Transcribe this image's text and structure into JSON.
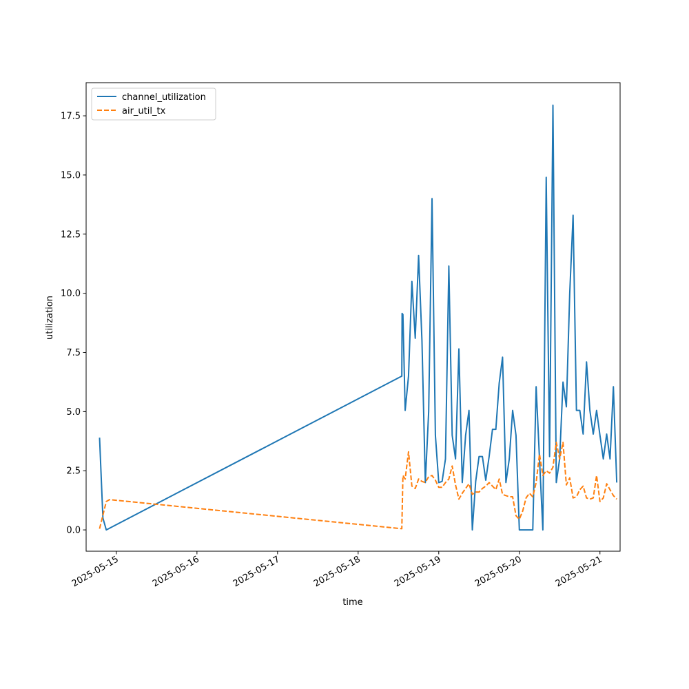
{
  "chart_data": {
    "type": "line",
    "title": "",
    "xlabel": "time",
    "ylabel": "utilization",
    "x_axis": "date",
    "xlim": [
      "2025-05-14T15:00",
      "2025-05-21T06:00"
    ],
    "ylim": [
      -0.9,
      18.9
    ],
    "grid": false,
    "legend_position": "top-left",
    "xticks": [
      {
        "value": "2025-05-15",
        "label": "2025-05-15"
      },
      {
        "value": "2025-05-16",
        "label": "2025-05-16"
      },
      {
        "value": "2025-05-17",
        "label": "2025-05-17"
      },
      {
        "value": "2025-05-18",
        "label": "2025-05-18"
      },
      {
        "value": "2025-05-19",
        "label": "2025-05-19"
      },
      {
        "value": "2025-05-20",
        "label": "2025-05-20"
      },
      {
        "value": "2025-05-21",
        "label": "2025-05-21"
      }
    ],
    "yticks": [
      {
        "value": 0,
        "label": "0.0"
      },
      {
        "value": 2.5,
        "label": "2.5"
      },
      {
        "value": 5,
        "label": "5.0"
      },
      {
        "value": 7.5,
        "label": "7.5"
      },
      {
        "value": 10,
        "label": "10.0"
      },
      {
        "value": 12.5,
        "label": "12.5"
      },
      {
        "value": 15,
        "label": "15.0"
      },
      {
        "value": 17.5,
        "label": "17.5"
      }
    ],
    "series": [
      {
        "name": "channel_utilization",
        "color": "#1f77b4",
        "style": "solid",
        "points": [
          [
            "2025-05-14T19:00",
            3.9
          ],
          [
            "2025-05-14T20:00",
            0.5
          ],
          [
            "2025-05-14T21:00",
            0.0
          ],
          [
            "2025-05-18T13:00",
            6.5
          ],
          [
            "2025-05-18T13:05",
            9.15
          ],
          [
            "2025-05-18T13:20",
            9.1
          ],
          [
            "2025-05-18T14:00",
            5.05
          ],
          [
            "2025-05-18T15:00",
            6.5
          ],
          [
            "2025-05-18T16:00",
            10.5
          ],
          [
            "2025-05-18T17:00",
            8.1
          ],
          [
            "2025-05-18T18:00",
            11.6
          ],
          [
            "2025-05-18T19:00",
            8.0
          ],
          [
            "2025-05-18T20:00",
            2.0
          ],
          [
            "2025-05-18T21:00",
            5.0
          ],
          [
            "2025-05-18T22:00",
            14.0
          ],
          [
            "2025-05-18T23:00",
            4.0
          ],
          [
            "2025-05-19T00:00",
            2.0
          ],
          [
            "2025-05-19T01:00",
            2.05
          ],
          [
            "2025-05-19T02:00",
            3.0
          ],
          [
            "2025-05-19T03:00",
            11.15
          ],
          [
            "2025-05-19T04:00",
            4.0
          ],
          [
            "2025-05-19T05:00",
            3.0
          ],
          [
            "2025-05-19T06:00",
            7.65
          ],
          [
            "2025-05-19T07:00",
            2.0
          ],
          [
            "2025-05-19T08:00",
            4.0
          ],
          [
            "2025-05-19T09:00",
            5.05
          ],
          [
            "2025-05-19T10:00",
            0.0
          ],
          [
            "2025-05-19T11:00",
            2.05
          ],
          [
            "2025-05-19T12:00",
            3.1
          ],
          [
            "2025-05-19T13:00",
            3.1
          ],
          [
            "2025-05-19T14:00",
            2.1
          ],
          [
            "2025-05-19T15:00",
            3.1
          ],
          [
            "2025-05-19T16:00",
            4.25
          ],
          [
            "2025-05-19T17:00",
            4.25
          ],
          [
            "2025-05-19T18:00",
            6.2
          ],
          [
            "2025-05-19T19:00",
            7.3
          ],
          [
            "2025-05-19T20:00",
            2.0
          ],
          [
            "2025-05-19T21:00",
            3.0
          ],
          [
            "2025-05-19T22:00",
            5.05
          ],
          [
            "2025-05-19T23:00",
            4.0
          ],
          [
            "2025-05-20T00:00",
            0.0
          ],
          [
            "2025-05-20T01:00",
            0.0
          ],
          [
            "2025-05-20T02:00",
            0.0
          ],
          [
            "2025-05-20T03:00",
            0.0
          ],
          [
            "2025-05-20T04:00",
            0.0
          ],
          [
            "2025-05-20T05:00",
            6.05
          ],
          [
            "2025-05-20T06:00",
            3.0
          ],
          [
            "2025-05-20T07:00",
            0.0
          ],
          [
            "2025-05-20T08:00",
            14.9
          ],
          [
            "2025-05-20T09:00",
            3.1
          ],
          [
            "2025-05-20T10:00",
            17.95
          ],
          [
            "2025-05-20T11:00",
            2.0
          ],
          [
            "2025-05-20T12:00",
            3.0
          ],
          [
            "2025-05-20T13:00",
            6.25
          ],
          [
            "2025-05-20T14:00",
            5.2
          ],
          [
            "2025-05-20T15:00",
            10.0
          ],
          [
            "2025-05-20T16:00",
            13.3
          ],
          [
            "2025-05-20T17:00",
            5.05
          ],
          [
            "2025-05-20T18:00",
            5.05
          ],
          [
            "2025-05-20T19:00",
            4.05
          ],
          [
            "2025-05-20T20:00",
            7.1
          ],
          [
            "2025-05-20T21:00",
            5.05
          ],
          [
            "2025-05-20T22:00",
            4.05
          ],
          [
            "2025-05-20T23:00",
            5.05
          ],
          [
            "2025-05-21T00:00",
            4.0
          ],
          [
            "2025-05-21T01:00",
            3.0
          ],
          [
            "2025-05-21T02:00",
            4.05
          ],
          [
            "2025-05-21T03:00",
            3.0
          ],
          [
            "2025-05-21T04:00",
            6.05
          ],
          [
            "2025-05-21T05:00",
            2.0
          ]
        ]
      },
      {
        "name": "air_util_tx",
        "color": "#ff7f0e",
        "style": "dashed",
        "points": [
          [
            "2025-05-14T19:00",
            0.05
          ],
          [
            "2025-05-14T21:00",
            1.2
          ],
          [
            "2025-05-14T22:00",
            1.28
          ],
          [
            "2025-05-18T13:00",
            0.05
          ],
          [
            "2025-05-18T13:20",
            2.3
          ],
          [
            "2025-05-18T14:00",
            2.15
          ],
          [
            "2025-05-18T15:00",
            3.3
          ],
          [
            "2025-05-18T16:00",
            1.85
          ],
          [
            "2025-05-18T17:00",
            1.75
          ],
          [
            "2025-05-18T18:00",
            2.15
          ],
          [
            "2025-05-18T19:00",
            2.05
          ],
          [
            "2025-05-18T20:00",
            2.0
          ],
          [
            "2025-05-18T21:00",
            2.25
          ],
          [
            "2025-05-18T22:00",
            2.3
          ],
          [
            "2025-05-18T23:00",
            2.1
          ],
          [
            "2025-05-19T00:00",
            1.8
          ],
          [
            "2025-05-19T01:00",
            1.8
          ],
          [
            "2025-05-19T02:00",
            2.0
          ],
          [
            "2025-05-19T03:00",
            2.15
          ],
          [
            "2025-05-19T04:00",
            2.7
          ],
          [
            "2025-05-19T05:00",
            1.9
          ],
          [
            "2025-05-19T06:00",
            1.3
          ],
          [
            "2025-05-19T07:00",
            1.55
          ],
          [
            "2025-05-19T08:00",
            1.75
          ],
          [
            "2025-05-19T09:00",
            1.95
          ],
          [
            "2025-05-19T10:00",
            1.5
          ],
          [
            "2025-05-19T11:00",
            1.6
          ],
          [
            "2025-05-19T12:00",
            1.6
          ],
          [
            "2025-05-19T13:00",
            1.75
          ],
          [
            "2025-05-19T14:00",
            1.85
          ],
          [
            "2025-05-19T15:00",
            2.0
          ],
          [
            "2025-05-19T16:00",
            1.85
          ],
          [
            "2025-05-19T17:00",
            1.7
          ],
          [
            "2025-05-19T18:00",
            2.15
          ],
          [
            "2025-05-19T19:00",
            1.5
          ],
          [
            "2025-05-19T20:00",
            1.45
          ],
          [
            "2025-05-19T21:00",
            1.4
          ],
          [
            "2025-05-19T22:00",
            1.4
          ],
          [
            "2025-05-19T23:00",
            0.6
          ],
          [
            "2025-05-20T00:00",
            0.45
          ],
          [
            "2025-05-20T01:00",
            0.8
          ],
          [
            "2025-05-20T02:00",
            1.35
          ],
          [
            "2025-05-20T03:00",
            1.55
          ],
          [
            "2025-05-20T04:00",
            1.4
          ],
          [
            "2025-05-20T05:00",
            2.0
          ],
          [
            "2025-05-20T06:00",
            3.2
          ],
          [
            "2025-05-20T07:00",
            2.3
          ],
          [
            "2025-05-20T08:00",
            2.5
          ],
          [
            "2025-05-20T09:00",
            2.4
          ],
          [
            "2025-05-20T10:00",
            2.65
          ],
          [
            "2025-05-20T11:00",
            3.7
          ],
          [
            "2025-05-20T12:00",
            3.0
          ],
          [
            "2025-05-20T13:00",
            3.7
          ],
          [
            "2025-05-20T14:00",
            1.9
          ],
          [
            "2025-05-20T15:00",
            2.2
          ],
          [
            "2025-05-20T16:00",
            1.35
          ],
          [
            "2025-05-20T17:00",
            1.4
          ],
          [
            "2025-05-20T18:00",
            1.7
          ],
          [
            "2025-05-20T19:00",
            1.85
          ],
          [
            "2025-05-20T20:00",
            1.35
          ],
          [
            "2025-05-20T21:00",
            1.3
          ],
          [
            "2025-05-20T22:00",
            1.35
          ],
          [
            "2025-05-20T23:00",
            2.3
          ],
          [
            "2025-05-21T00:00",
            1.2
          ],
          [
            "2025-05-21T01:00",
            1.35
          ],
          [
            "2025-05-21T02:00",
            1.95
          ],
          [
            "2025-05-21T03:00",
            1.7
          ],
          [
            "2025-05-21T04:00",
            1.45
          ],
          [
            "2025-05-21T05:00",
            1.3
          ]
        ]
      }
    ]
  }
}
